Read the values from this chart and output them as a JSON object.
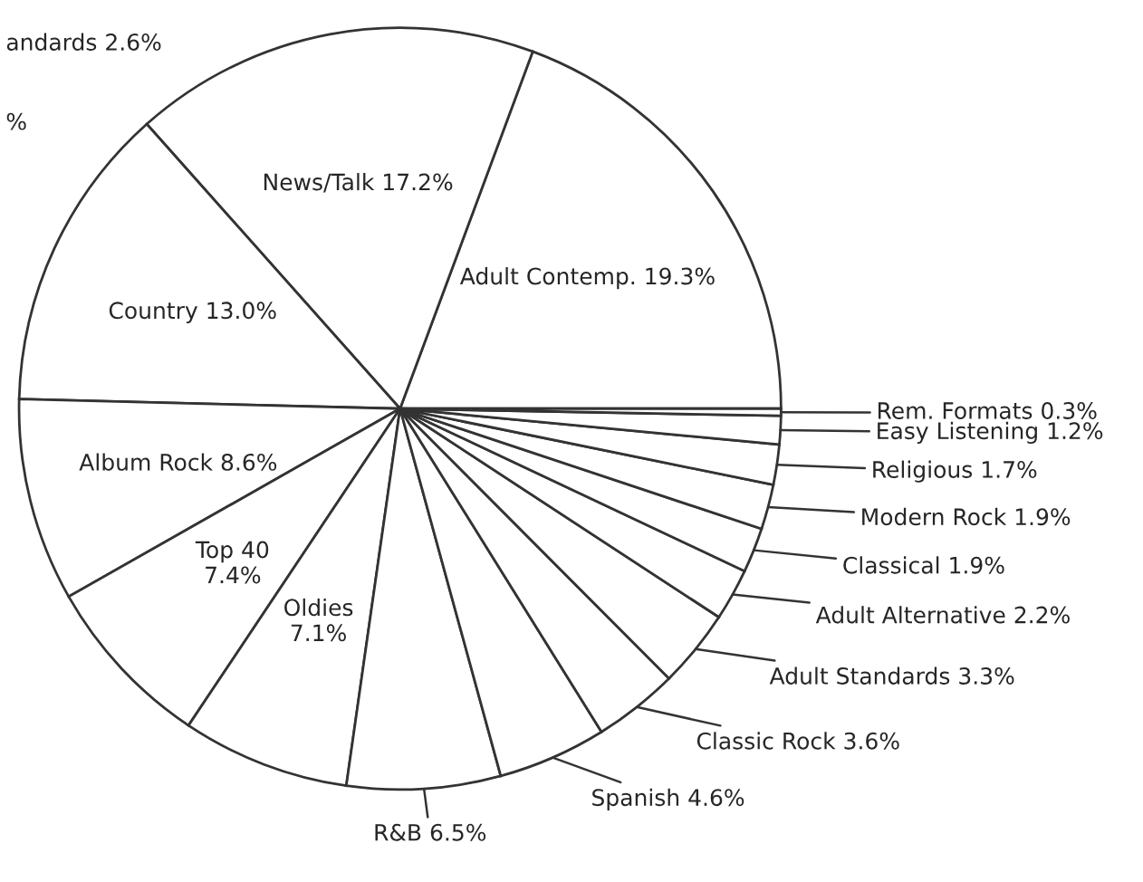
{
  "chart_data": {
    "type": "pie",
    "categories": [
      "Adult Contemp.",
      "News/Talk",
      "Country",
      "Album Rock",
      "Top 40",
      "Oldies",
      "R&B",
      "Spanish",
      "Classic Rock",
      "Adult Standards",
      "Adult Alternative",
      "Classical",
      "Modern Rock",
      "Religious",
      "Easy Listening",
      "Rem. Formats"
    ],
    "values": [
      19.3,
      17.2,
      13.0,
      8.6,
      7.4,
      7.1,
      6.5,
      4.6,
      3.6,
      3.3,
      2.2,
      1.9,
      1.9,
      1.7,
      1.2,
      0.3
    ],
    "value_labels": [
      "19.3%",
      "17.2%",
      "13.0%",
      "8.6%",
      "7.4%",
      "7.1%",
      "6.5%",
      "4.6%",
      "3.6%",
      "3.3%",
      "2.2%",
      "1.9%",
      "1.9%",
      "1.7%",
      "1.2%",
      "0.3%"
    ],
    "colors": [
      "#ffffff",
      "#ffffff",
      "#ffffff",
      "#ffffff",
      "#ffffff",
      "#ffffff",
      "#ffffff",
      "#ffffff",
      "#ffffff",
      "#ffffff",
      "#ffffff",
      "#ffffff",
      "#ffffff",
      "#ffffff",
      "#ffffff",
      "#ffffff"
    ],
    "annotations": [
      "andards 2.6%",
      "%"
    ]
  }
}
